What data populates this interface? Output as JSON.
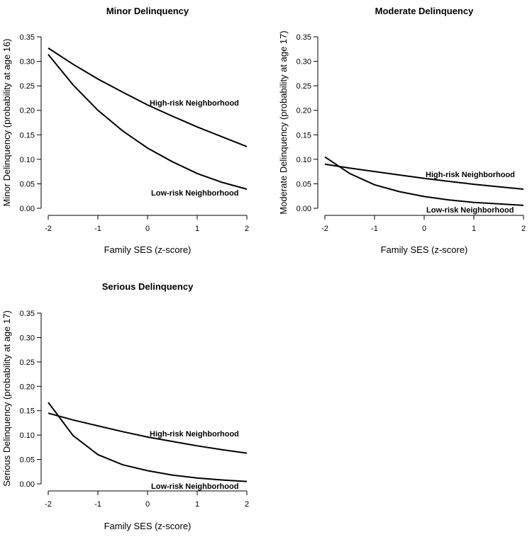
{
  "chart_data": [
    {
      "type": "line",
      "title": "Minor Delinquency",
      "xlabel": "Family SES (z-score)",
      "ylabel": "Minor Delinquency (probability at age 16)",
      "xlim": [
        -2,
        2
      ],
      "ylim": [
        0,
        0.35
      ],
      "xticks": [
        "-2",
        "-1",
        "0",
        "1",
        "2"
      ],
      "yticks": [
        "0.00",
        "0.05",
        "0.10",
        "0.15",
        "0.20",
        "0.25",
        "0.30",
        "0.35"
      ],
      "x": [
        -2,
        -1.5,
        -1,
        -0.5,
        0,
        0.5,
        1,
        1.5,
        2
      ],
      "series": [
        {
          "name": "High-risk Neighborhood",
          "values": [
            0.327,
            0.294,
            0.264,
            0.237,
            0.211,
            0.188,
            0.166,
            0.146,
            0.126
          ]
        },
        {
          "name": "Low-risk Neighborhood",
          "values": [
            0.314,
            0.252,
            0.2,
            0.158,
            0.123,
            0.095,
            0.071,
            0.053,
            0.039
          ]
        }
      ]
    },
    {
      "type": "line",
      "title": "Moderate Delinquency",
      "xlabel": "Family SES (z-score)",
      "ylabel": "Moderate Delinquency (probability at age 17)",
      "xlim": [
        -2,
        2
      ],
      "ylim": [
        0,
        0.35
      ],
      "xticks": [
        "-2",
        "-1",
        "0",
        "1",
        "2"
      ],
      "yticks": [
        "0.00",
        "0.05",
        "0.10",
        "0.15",
        "0.20",
        "0.25",
        "0.30",
        "0.35"
      ],
      "x": [
        -2,
        -1.5,
        -1,
        -0.5,
        0,
        0.5,
        1,
        1.5,
        2
      ],
      "series": [
        {
          "name": "High-risk Neighborhood",
          "values": [
            0.09,
            0.082,
            0.075,
            0.068,
            0.061,
            0.055,
            0.049,
            0.044,
            0.039
          ]
        },
        {
          "name": "Low-risk Neighborhood",
          "values": [
            0.105,
            0.071,
            0.048,
            0.034,
            0.024,
            0.017,
            0.012,
            0.009,
            0.006
          ]
        }
      ]
    },
    {
      "type": "line",
      "title": "Serious Delinquency",
      "xlabel": "Family SES (z-score)",
      "ylabel": "Serious Delinquency (probability at age 17)",
      "xlim": [
        -2,
        2
      ],
      "ylim": [
        0,
        0.35
      ],
      "xticks": [
        "-2",
        "-1",
        "0",
        "1",
        "2"
      ],
      "yticks": [
        "0.00",
        "0.05",
        "0.10",
        "0.15",
        "0.20",
        "0.25",
        "0.30",
        "0.35"
      ],
      "x": [
        -2,
        -1.5,
        -1,
        -0.5,
        0,
        0.5,
        1,
        1.5,
        2
      ],
      "series": [
        {
          "name": "High-risk Neighborhood",
          "values": [
            0.145,
            0.131,
            0.119,
            0.107,
            0.096,
            0.087,
            0.078,
            0.07,
            0.063
          ]
        },
        {
          "name": "Low-risk Neighborhood",
          "values": [
            0.167,
            0.099,
            0.06,
            0.039,
            0.027,
            0.018,
            0.012,
            0.008,
            0.005
          ]
        }
      ]
    }
  ]
}
